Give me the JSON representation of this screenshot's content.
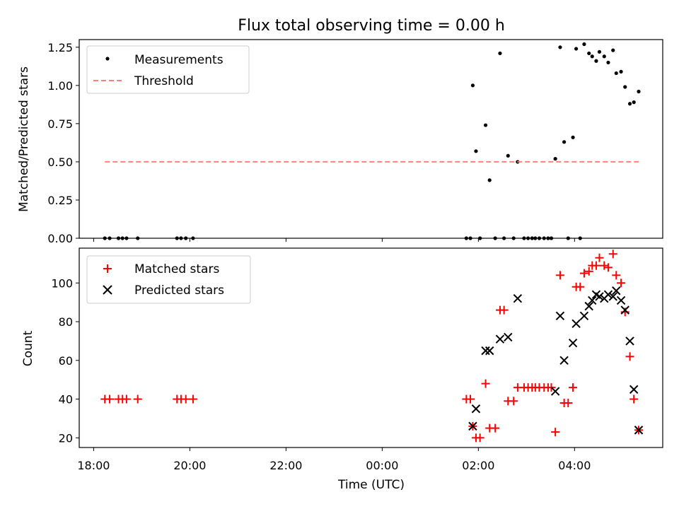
{
  "title": "Flux total observing time = 0.00 h",
  "xlabel": "Time (UTC)",
  "xticks": [
    {
      "value": -6,
      "label": "18:00"
    },
    {
      "value": -4,
      "label": "20:00"
    },
    {
      "value": -2,
      "label": "22:00"
    },
    {
      "value": 0,
      "label": "00:00"
    },
    {
      "value": 2,
      "label": "02:00"
    },
    {
      "value": 4,
      "label": "04:00"
    }
  ],
  "colors": {
    "measurement": "#000000",
    "threshold": "#ff7f7f",
    "matched": "#ff0000",
    "predicted": "#000000"
  },
  "chart_data": [
    {
      "type": "scatter",
      "ylabel": "Matched/Predicted stars",
      "ylim": [
        0,
        1.3
      ],
      "xlim": [
        "17:42",
        "05:50"
      ],
      "yticks": [
        "0.00",
        "0.25",
        "0.50",
        "0.75",
        "1.00",
        "1.25"
      ],
      "legend_position": "top-left",
      "series": [
        {
          "name": "Measurements",
          "marker": "dot",
          "points": [
            [
              "18:14",
              0
            ],
            [
              "18:20",
              0
            ],
            [
              "18:31",
              0
            ],
            [
              "18:36",
              0
            ],
            [
              "18:41",
              0
            ],
            [
              "18:55",
              0
            ],
            [
              "19:44",
              0
            ],
            [
              "19:49",
              0
            ],
            [
              "19:55",
              0
            ],
            [
              "20:04",
              0
            ],
            [
              "01:45",
              0
            ],
            [
              "01:50",
              0
            ],
            [
              "01:53",
              1.0
            ],
            [
              "01:57",
              0.57
            ],
            [
              "02:02",
              0
            ],
            [
              "02:09",
              0.74
            ],
            [
              "02:14",
              0.38
            ],
            [
              "02:21",
              0
            ],
            [
              "02:27",
              1.21
            ],
            [
              "02:32",
              0
            ],
            [
              "02:37",
              0.54
            ],
            [
              "02:44",
              0
            ],
            [
              "02:49",
              0.5
            ],
            [
              "02:57",
              0
            ],
            [
              "03:02",
              0
            ],
            [
              "03:07",
              0
            ],
            [
              "03:11",
              0
            ],
            [
              "03:16",
              0
            ],
            [
              "03:22",
              0
            ],
            [
              "03:27",
              0
            ],
            [
              "03:31",
              0
            ],
            [
              "03:36",
              0.52
            ],
            [
              "03:42",
              1.25
            ],
            [
              "03:47",
              0.63
            ],
            [
              "03:52",
              0
            ],
            [
              "03:58",
              0.66
            ],
            [
              "04:02",
              1.24
            ],
            [
              "04:07",
              0
            ],
            [
              "04:12",
              1.27
            ],
            [
              "04:18",
              1.21
            ],
            [
              "04:22",
              1.19
            ],
            [
              "04:27",
              1.16
            ],
            [
              "04:31",
              1.22
            ],
            [
              "04:37",
              1.19
            ],
            [
              "04:42",
              1.15
            ],
            [
              "04:48",
              1.23
            ],
            [
              "04:52",
              1.08
            ],
            [
              "04:58",
              1.09
            ],
            [
              "05:03",
              0.99
            ],
            [
              "05:09",
              0.88
            ],
            [
              "05:14",
              0.89
            ],
            [
              "05:20",
              0.96
            ]
          ]
        },
        {
          "name": "Threshold",
          "style": "dashed",
          "points": [
            [
              "18:14",
              0.5
            ],
            [
              "05:20",
              0.5
            ]
          ]
        }
      ]
    },
    {
      "type": "scatter",
      "ylabel": "Count",
      "ylim": [
        15,
        118
      ],
      "xlim": [
        "17:42",
        "05:50"
      ],
      "yticks": [
        "20",
        "40",
        "60",
        "80",
        "100"
      ],
      "legend_position": "top-left",
      "series": [
        {
          "name": "Matched stars",
          "marker": "plus",
          "points": [
            [
              "18:14",
              40
            ],
            [
              "18:20",
              40
            ],
            [
              "18:31",
              40
            ],
            [
              "18:36",
              40
            ],
            [
              "18:41",
              40
            ],
            [
              "18:55",
              40
            ],
            [
              "19:44",
              40
            ],
            [
              "19:49",
              40
            ],
            [
              "19:55",
              40
            ],
            [
              "20:04",
              40
            ],
            [
              "01:45",
              40
            ],
            [
              "01:50",
              40
            ],
            [
              "01:53",
              26
            ],
            [
              "01:57",
              20
            ],
            [
              "02:02",
              20
            ],
            [
              "02:09",
              48
            ],
            [
              "02:14",
              25
            ],
            [
              "02:21",
              25
            ],
            [
              "02:27",
              86
            ],
            [
              "02:32",
              86
            ],
            [
              "02:37",
              39
            ],
            [
              "02:44",
              39
            ],
            [
              "02:49",
              46
            ],
            [
              "02:57",
              46
            ],
            [
              "03:02",
              46
            ],
            [
              "03:07",
              46
            ],
            [
              "03:11",
              46
            ],
            [
              "03:16",
              46
            ],
            [
              "03:22",
              46
            ],
            [
              "03:27",
              46
            ],
            [
              "03:31",
              46
            ],
            [
              "03:36",
              23
            ],
            [
              "03:42",
              104
            ],
            [
              "03:47",
              38
            ],
            [
              "03:52",
              38
            ],
            [
              "03:58",
              46
            ],
            [
              "04:02",
              98
            ],
            [
              "04:07",
              98
            ],
            [
              "04:12",
              105
            ],
            [
              "04:18",
              106
            ],
            [
              "04:22",
              109
            ],
            [
              "04:27",
              109
            ],
            [
              "04:31",
              113
            ],
            [
              "04:37",
              109
            ],
            [
              "04:42",
              108
            ],
            [
              "04:48",
              115
            ],
            [
              "04:52",
              104
            ],
            [
              "04:58",
              100
            ],
            [
              "05:03",
              85
            ],
            [
              "05:09",
              62
            ],
            [
              "05:14",
              40
            ],
            [
              "05:20",
              24
            ]
          ]
        },
        {
          "name": "Predicted stars",
          "marker": "x",
          "points": [
            [
              "01:53",
              26
            ],
            [
              "01:57",
              35
            ],
            [
              "02:09",
              65
            ],
            [
              "02:14",
              65
            ],
            [
              "02:27",
              71
            ],
            [
              "02:37",
              72
            ],
            [
              "02:49",
              92
            ],
            [
              "03:36",
              44
            ],
            [
              "03:42",
              83
            ],
            [
              "03:47",
              60
            ],
            [
              "03:58",
              69
            ],
            [
              "04:02",
              79
            ],
            [
              "04:12",
              83
            ],
            [
              "04:18",
              88
            ],
            [
              "04:22",
              91
            ],
            [
              "04:27",
              94
            ],
            [
              "04:31",
              93
            ],
            [
              "04:37",
              92
            ],
            [
              "04:42",
              94
            ],
            [
              "04:48",
              93
            ],
            [
              "04:52",
              96
            ],
            [
              "04:58",
              91
            ],
            [
              "05:03",
              86
            ],
            [
              "05:09",
              70
            ],
            [
              "05:14",
              45
            ],
            [
              "05:20",
              24
            ]
          ]
        }
      ]
    }
  ]
}
